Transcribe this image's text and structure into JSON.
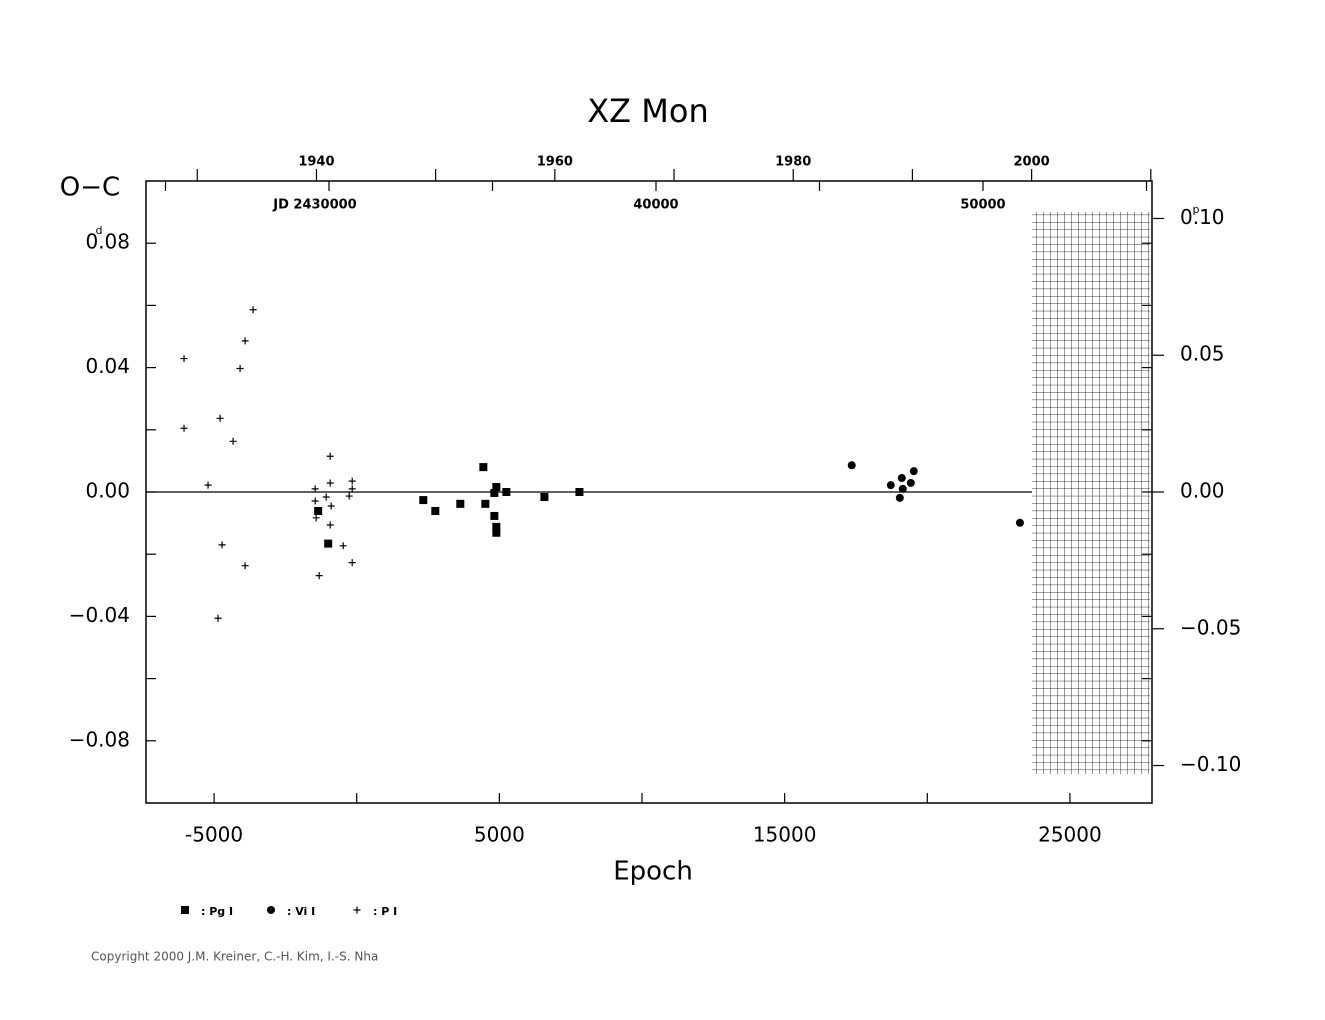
{
  "chart_data": {
    "type": "scatter",
    "title": "XZ Mon",
    "xlabel": "Epoch",
    "ylabel": "O−C",
    "y_unit": "d",
    "y2_unit": "p",
    "copyright": "Copyright 2000 J.M. Kreiner, C.-H. Kim, I.-S. Nha",
    "xlim": [
      -7386,
      27877
    ],
    "xticks": [
      -5000,
      5000,
      15000,
      25000
    ],
    "xminor": [
      0,
      10000,
      20000
    ],
    "ylim": [
      -0.1,
      0.1
    ],
    "yticks": [
      {
        "value": -0.08,
        "label": "−0.08"
      },
      {
        "value": -0.04,
        "label": "−0.04"
      },
      {
        "value": 0,
        "label": "0.00"
      },
      0.04,
      0.08
    ],
    "yminor": [
      -0.06,
      -0.02,
      0.02,
      0.06
    ],
    "y2lim": [
      -0.1137,
      0.1137
    ],
    "y2ticks": [
      {
        "value": -0.1,
        "label": "−0.10"
      },
      {
        "value": -0.05,
        "label": "−0.05"
      },
      {
        "value": 0,
        "label": "0.00"
      },
      0.05,
      {
        "value": 0.1,
        "label": "0.10"
      }
    ],
    "x2lim": [
      1925.7,
      2010.1
    ],
    "x2ticks": [
      1940,
      1960,
      1980,
      2000
    ],
    "x2minor": [
      1930,
      1950,
      1970,
      1990,
      2010
    ],
    "x3lim": [
      2424404,
      2455168
    ],
    "x3ticks": [
      {
        "value": 2430000,
        "label": "JD  2430000"
      },
      {
        "value": 2440000,
        "label": "40000"
      },
      {
        "value": 2450000,
        "label": "50000"
      }
    ],
    "x3minor": [
      2425000,
      2435000,
      2445000,
      2455000
    ],
    "series": [
      {
        "name": ": Pg I",
        "color": "#000000",
        "marker": "square",
        "x": [
          -1351,
          -1000,
          2334,
          2755,
          3632,
          4439,
          4509,
          4825,
          4825,
          4895,
          4895,
          4895,
          5246,
          6579,
          7807
        ],
        "values": [
          -0.0061,
          -0.0166,
          -0.0026,
          -0.0061,
          -0.0038,
          0.008,
          -0.0038,
          -0.0077,
          -0.0003,
          0.0016,
          -0.0112,
          -0.0131,
          0.0,
          -0.0016,
          0.0
        ]
      },
      {
        "name": ": Vi I",
        "color": "#000000",
        "marker": "circle",
        "x": [
          17352,
          18721,
          19107,
          19037,
          19142,
          19423,
          19528,
          23247
        ],
        "values": [
          0.0086,
          0.0022,
          0.0045,
          -0.0019,
          0.001,
          0.0029,
          0.0067,
          -0.0099
        ]
      },
      {
        "name": ": P I",
        "color": "#000000",
        "marker": "plus",
        "x": [
          -6053,
          -6053,
          -5211,
          -4789,
          -4719,
          -4860,
          -4333,
          -4088,
          -3912,
          -3631,
          -3912,
          -1456,
          -1456,
          -1421,
          -1316,
          -1070,
          -930,
          -930,
          -895,
          -930,
          -474,
          -263,
          -158,
          -158,
          -158
        ],
        "values": [
          0.0429,
          0.0205,
          0.0022,
          0.0237,
          -0.017,
          -0.0406,
          0.0163,
          0.0397,
          0.0486,
          0.0586,
          -0.0237,
          0.001,
          -0.0029,
          -0.0083,
          -0.0269,
          -0.0016,
          0.0115,
          0.0029,
          -0.0045,
          -0.0106,
          -0.0173,
          -0.0013,
          0.001,
          0.0035,
          -0.0227
        ]
      }
    ]
  }
}
